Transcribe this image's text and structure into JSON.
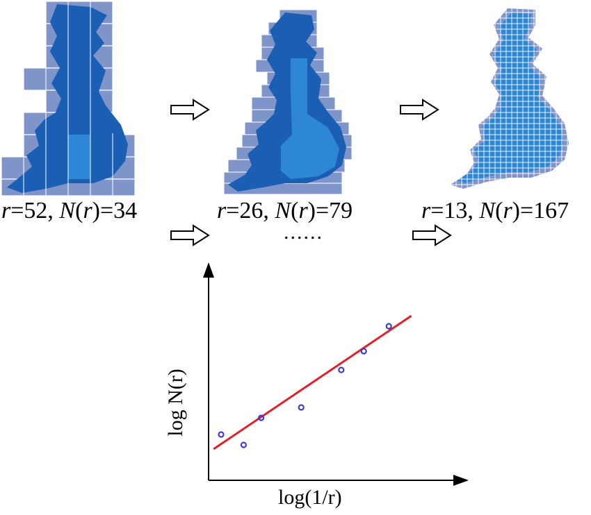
{
  "panels": [
    {
      "r": "52",
      "n": "34"
    },
    {
      "r": "26",
      "n": "79"
    },
    {
      "r": "13",
      "n": "167"
    }
  ],
  "labels": {
    "r_var": "r",
    "n_var": "N",
    "ellipsis": "......",
    "ylabel": "log N(r)",
    "xlabel": "log(1/r)"
  },
  "colors": {
    "map_fill": "#1a5fb4",
    "box_fill": "#7f95c9",
    "inner_fill": "#2d86d6",
    "fit_line": "#e0202a",
    "points": "#3b3bd6"
  },
  "chart_data": {
    "type": "scatter",
    "points": [
      {
        "x": 0.05,
        "y": 0.22
      },
      {
        "x": 0.14,
        "y": 0.17
      },
      {
        "x": 0.21,
        "y": 0.3
      },
      {
        "x": 0.37,
        "y": 0.35
      },
      {
        "x": 0.53,
        "y": 0.53
      },
      {
        "x": 0.62,
        "y": 0.62
      },
      {
        "x": 0.72,
        "y": 0.74
      }
    ],
    "fit_line": {
      "x": [
        0.02,
        0.81
      ],
      "y": [
        0.15,
        0.79
      ]
    },
    "xlabel": "log(1/r)",
    "ylabel": "log N(r)",
    "xlim": [
      0,
      1
    ],
    "ylim": [
      0,
      1
    ]
  }
}
